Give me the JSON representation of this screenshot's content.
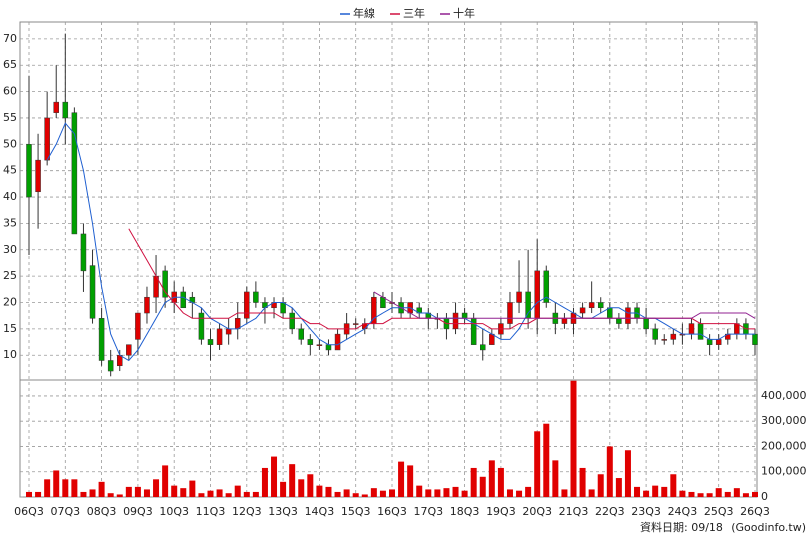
{
  "chart_data": {
    "type": "candlestick",
    "categories": [
      "06Q3",
      null,
      null,
      null,
      "07Q3",
      null,
      null,
      null,
      "08Q3",
      null,
      null,
      null,
      "09Q3",
      null,
      null,
      null,
      "10Q3",
      null,
      null,
      null,
      "11Q3",
      null,
      null,
      null,
      "12Q3",
      null,
      null,
      null,
      "13Q3",
      null,
      null,
      null,
      "14Q3",
      null,
      null,
      null,
      "15Q3",
      null,
      null,
      null,
      "16Q3",
      null,
      null,
      null,
      "17Q3",
      null,
      null,
      null,
      "18Q3",
      null,
      null,
      null,
      "19Q3",
      null,
      null,
      null,
      "20Q3",
      null,
      null,
      null,
      "21Q3",
      null,
      null,
      null,
      "22Q3",
      null,
      null,
      null,
      "23Q3",
      null,
      null,
      null,
      "24Q3",
      null,
      null,
      null,
      "25Q3",
      null,
      null,
      null,
      "26Q3"
    ],
    "open": [
      50,
      41,
      47,
      56,
      58,
      56,
      33,
      27,
      17,
      9,
      8,
      10,
      13,
      18,
      21,
      26,
      20,
      22,
      21,
      18,
      13,
      12,
      14,
      15,
      17,
      22,
      20,
      19,
      20,
      18,
      15,
      13,
      12,
      12,
      11,
      14,
      16,
      15,
      16,
      21,
      20,
      20,
      18,
      19,
      18,
      17,
      17,
      15,
      18,
      17,
      12,
      12,
      14,
      16,
      20,
      22,
      17,
      26,
      18,
      16,
      16,
      18,
      19,
      20,
      19,
      17,
      16,
      19,
      17,
      15,
      13,
      13,
      14,
      14,
      16,
      13,
      12,
      13,
      14,
      16,
      14
    ],
    "high": [
      63,
      52,
      60,
      65,
      71,
      57,
      35,
      30,
      19,
      11,
      11,
      12,
      18,
      23,
      29,
      27,
      24,
      23,
      22,
      19,
      15,
      16,
      17,
      20,
      23,
      24,
      21,
      21,
      21,
      19,
      16,
      14,
      13,
      13,
      15,
      18,
      17,
      17,
      22,
      22,
      22,
      21,
      20,
      20,
      19,
      18,
      18,
      20,
      19,
      18,
      15,
      15,
      17,
      22,
      28,
      30,
      32,
      27,
      20,
      18,
      19,
      20,
      24,
      21,
      20,
      18,
      20,
      20,
      19,
      16,
      14,
      15,
      16,
      17,
      17,
      14,
      14,
      15,
      17,
      17,
      15
    ],
    "low": [
      29,
      34,
      46,
      55,
      50,
      33,
      22,
      16,
      8,
      6,
      7,
      9,
      10,
      16,
      18,
      19,
      18,
      19,
      17,
      12,
      9,
      11,
      12,
      13,
      16,
      19,
      16,
      17,
      17,
      14,
      12,
      10,
      11,
      10,
      11,
      13,
      15,
      14,
      15,
      19,
      18,
      17,
      17,
      17,
      15,
      15,
      13,
      14,
      16,
      12,
      9,
      12,
      13,
      15,
      18,
      15,
      14,
      19,
      14,
      15,
      14,
      17,
      18,
      18,
      16,
      15,
      15,
      16,
      14,
      12,
      12,
      12,
      12,
      13,
      13,
      10,
      11,
      12,
      13,
      13,
      10
    ],
    "close": [
      40,
      47,
      55,
      58,
      55,
      33,
      26,
      17,
      9,
      7,
      10,
      12,
      18,
      21,
      25,
      21,
      22,
      19,
      20,
      13,
      12,
      15,
      15,
      17,
      22,
      20,
      19,
      20,
      18,
      15,
      13,
      12,
      12,
      11,
      14,
      16,
      16,
      16,
      21,
      19,
      20,
      18,
      20,
      18,
      17,
      17,
      15,
      18,
      17,
      12,
      11,
      14,
      16,
      20,
      22,
      17,
      26,
      20,
      16,
      17,
      18,
      19,
      20,
      19,
      17,
      16,
      19,
      17,
      15,
      13,
      13,
      14,
      14,
      16,
      13,
      12,
      13,
      14,
      16,
      14,
      12
    ],
    "up_color": "#e00000",
    "down_color": "#00a000",
    "ylim": [
      5.3,
      73.2
    ],
    "yticks": [
      10,
      15,
      20,
      25,
      30,
      35,
      40,
      45,
      50,
      55,
      60,
      65,
      70
    ],
    "grid": true,
    "series": [
      {
        "name": "年線",
        "color": "#1f5fd0",
        "values": [
          null,
          null,
          47,
          50,
          54,
          52,
          45,
          35,
          23,
          14,
          10,
          9,
          11,
          14,
          17,
          20,
          21,
          21,
          20,
          19,
          17,
          16,
          15,
          15,
          16,
          17,
          19,
          20,
          20,
          19,
          17,
          15,
          13,
          12,
          12,
          13,
          14,
          15,
          17,
          18,
          19,
          19,
          19,
          18,
          18,
          17,
          17,
          17,
          17,
          16,
          15,
          14,
          13,
          13,
          15,
          18,
          20,
          21,
          20,
          19,
          18,
          17,
          17,
          18,
          19,
          19,
          18,
          18,
          17,
          17,
          16,
          15,
          14,
          14,
          14,
          13,
          13,
          14,
          14,
          14,
          14
        ]
      },
      {
        "name": "三年",
        "color": "#d01040",
        "values": [
          null,
          null,
          null,
          null,
          null,
          null,
          null,
          null,
          null,
          null,
          null,
          34,
          31,
          28,
          25,
          22,
          20,
          18,
          17,
          17,
          17,
          17,
          17,
          18,
          18,
          18,
          18,
          18,
          17,
          17,
          17,
          16,
          16,
          15,
          15,
          15,
          15,
          16,
          16,
          16,
          17,
          17,
          17,
          17,
          17,
          17,
          16,
          16,
          16,
          16,
          16,
          15,
          15,
          15,
          16,
          16,
          17,
          17,
          17,
          17,
          17,
          17,
          17,
          17,
          17,
          17,
          17,
          17,
          17,
          17,
          17,
          17,
          17,
          17,
          16,
          16,
          16,
          16,
          16,
          15,
          15
        ]
      },
      {
        "name": "十年",
        "color": "#902090",
        "values": [
          null,
          null,
          null,
          null,
          null,
          null,
          null,
          null,
          null,
          null,
          null,
          null,
          null,
          null,
          null,
          null,
          null,
          null,
          null,
          null,
          null,
          null,
          null,
          null,
          null,
          null,
          null,
          null,
          null,
          null,
          null,
          null,
          null,
          null,
          null,
          null,
          null,
          null,
          22,
          21,
          20,
          19,
          18,
          17,
          17,
          17,
          17,
          17,
          17,
          17,
          17,
          17,
          17,
          17,
          17,
          17,
          17,
          17,
          17,
          17,
          17,
          17,
          17,
          17,
          17,
          17,
          17,
          17,
          17,
          17,
          17,
          17,
          17,
          17,
          18,
          18,
          18,
          18,
          18,
          18,
          17
        ]
      }
    ],
    "volume": {
      "color": "#e00000",
      "values": [
        20000,
        20000,
        70000,
        105000,
        70000,
        70000,
        20000,
        30000,
        60000,
        15000,
        10000,
        40000,
        40000,
        30000,
        70000,
        125000,
        45000,
        35000,
        65000,
        15000,
        25000,
        30000,
        15000,
        45000,
        20000,
        20000,
        115000,
        160000,
        60000,
        130000,
        70000,
        90000,
        45000,
        40000,
        20000,
        30000,
        15000,
        10000,
        35000,
        25000,
        30000,
        140000,
        125000,
        45000,
        30000,
        30000,
        35000,
        40000,
        25000,
        115000,
        80000,
        145000,
        115000,
        30000,
        25000,
        40000,
        260000,
        290000,
        145000,
        30000,
        460000,
        115000,
        30000,
        90000,
        200000,
        75000,
        185000,
        40000,
        25000,
        45000,
        40000,
        90000,
        25000,
        20000,
        15000,
        15000,
        35000,
        20000,
        35000,
        15000,
        20000
      ],
      "ylim": [
        0,
        463000
      ],
      "yticks": [
        0,
        {
          "value": 100000,
          "label": "100,000"
        },
        {
          "value": 200000,
          "label": "200,000"
        },
        {
          "value": 300000,
          "label": "300,000"
        },
        {
          "value": 400000,
          "label": "400,000"
        }
      ]
    },
    "footer": {
      "date": "資料日期: 09/18",
      "source": "(Goodinfo.tw)"
    }
  }
}
